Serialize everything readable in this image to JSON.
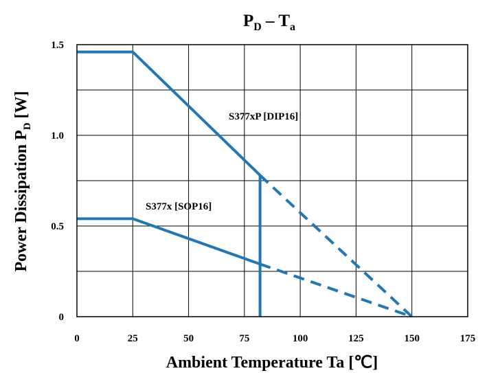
{
  "chart_data": {
    "type": "line",
    "title": "P",
    "title_sub1": "D",
    "title_mid": " – T",
    "title_sub2": "a",
    "xlabel": "Ambient Temperature Ta [℃]",
    "ylabel_main": "Power Dissipation P",
    "ylabel_sub": "D",
    "ylabel_unit": " [W]",
    "xlim": [
      0,
      175
    ],
    "ylim": [
      0,
      1.5
    ],
    "x_ticks": [
      0,
      25,
      50,
      75,
      100,
      125,
      150,
      175
    ],
    "x_tick_labels": [
      "0",
      "25",
      "50",
      "75",
      "100",
      "125",
      "150",
      "175"
    ],
    "y_ticks": [
      0,
      0.5,
      1.0,
      1.5
    ],
    "y_tick_labels": [
      "0",
      "0.5",
      "1.0",
      "1.5"
    ],
    "grid": true,
    "color": "#1f77b4",
    "series": [
      {
        "name": "S377xP [DIP16]",
        "solid": [
          [
            0,
            1.46
          ],
          [
            25,
            1.46
          ],
          [
            82,
            0.78
          ]
        ],
        "dashed": [
          [
            82,
            0.78
          ],
          [
            150,
            0.0
          ]
        ]
      },
      {
        "name": "S377x [SOP16]",
        "solid": [
          [
            0,
            0.54
          ],
          [
            25,
            0.54
          ],
          [
            82,
            0.29
          ]
        ],
        "dashed": [
          [
            82,
            0.29
          ],
          [
            150,
            0.0
          ]
        ]
      }
    ],
    "vertical_line": {
      "x": 82,
      "y_from": 0,
      "y_to": 0.78
    }
  }
}
